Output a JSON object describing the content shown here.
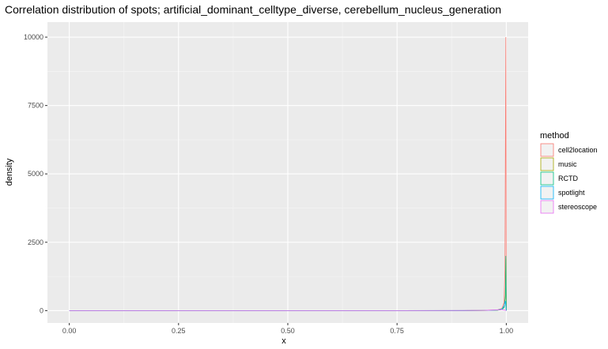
{
  "chart_data": {
    "type": "area",
    "title": "Correlation distribution of spots; artificial_dominant_celltype_diverse, cerebellum_nucleus_generation",
    "xlabel": "x",
    "ylabel": "density",
    "xlim": [
      -0.05,
      1.05
    ],
    "ylim": [
      -450,
      10550
    ],
    "x_ticks": [
      0.0,
      0.25,
      0.5,
      0.75,
      1.0
    ],
    "x_tick_labels": [
      "0.00",
      "0.25",
      "0.50",
      "0.75",
      "1.00"
    ],
    "y_ticks": [
      0,
      2500,
      5000,
      7500,
      10000
    ],
    "y_tick_labels": [
      "0",
      "2500",
      "5000",
      "7500",
      "10000"
    ],
    "grid": true,
    "legend": {
      "title": "method",
      "position": "right"
    },
    "series": [
      {
        "name": "cell2location",
        "color": "#F8766D",
        "x": [
          0.0,
          0.75,
          0.9,
          0.95,
          0.98,
          0.99,
          0.995,
          0.997,
          0.998,
          0.999,
          1.0
        ],
        "y": [
          0,
          0,
          3,
          10,
          30,
          80,
          300,
          1500,
          5800,
          10000,
          0
        ]
      },
      {
        "name": "music",
        "color": "#A3A500",
        "x": [
          0.0,
          0.75,
          0.9,
          0.95,
          0.98,
          0.99,
          0.995,
          0.998,
          0.999,
          1.0
        ],
        "y": [
          0,
          0,
          2,
          5,
          15,
          40,
          120,
          500,
          1900,
          0
        ]
      },
      {
        "name": "RCTD",
        "color": "#00BF7D",
        "x": [
          0.0,
          0.75,
          0.9,
          0.95,
          0.98,
          0.99,
          0.995,
          0.998,
          0.999,
          1.0
        ],
        "y": [
          0,
          0,
          2,
          5,
          15,
          40,
          120,
          550,
          2000,
          0
        ]
      },
      {
        "name": "spotlight",
        "color": "#00B0F6",
        "x": [
          0.0,
          0.75,
          0.9,
          0.95,
          0.98,
          0.99,
          0.995,
          0.998,
          1.0
        ],
        "y": [
          0,
          0,
          3,
          8,
          25,
          60,
          180,
          350,
          0
        ]
      },
      {
        "name": "stereoscope",
        "color": "#E76BF3",
        "x": [
          0.0,
          0.75,
          0.9,
          0.95,
          0.98,
          0.99,
          1.0
        ],
        "y": [
          0,
          0,
          4,
          10,
          25,
          40,
          0
        ]
      }
    ]
  }
}
